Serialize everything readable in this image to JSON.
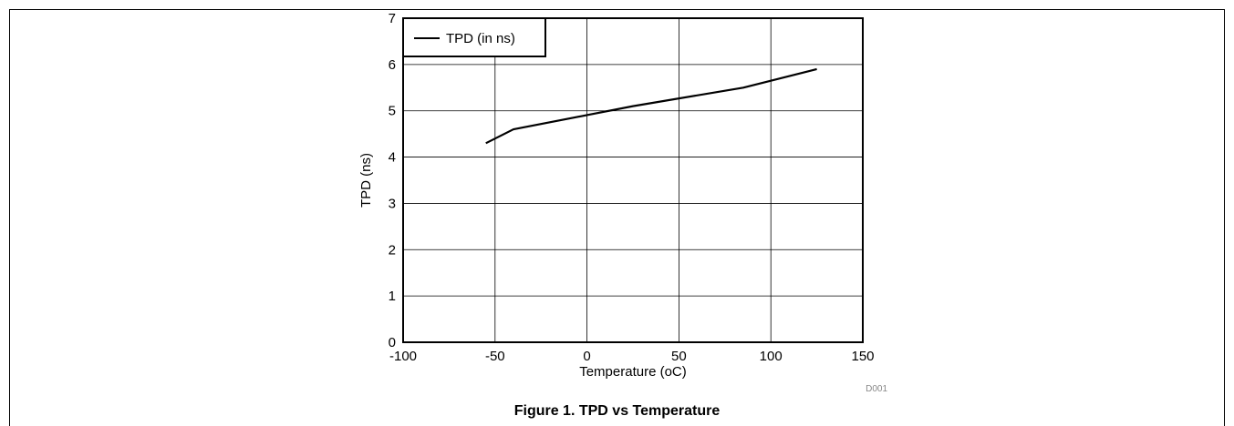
{
  "caption": "Figure 1. TPD vs Temperature",
  "chart_data": {
    "type": "line",
    "title": "",
    "xlabel": "Temperature (oC)",
    "ylabel": "TPD (ns)",
    "xlim": [
      -100,
      150
    ],
    "ylim": [
      0,
      7
    ],
    "xticks": [
      -100,
      -50,
      0,
      50,
      100,
      150
    ],
    "yticks": [
      0,
      1,
      2,
      3,
      4,
      5,
      6,
      7
    ],
    "grid": true,
    "legend": "top-left",
    "series": [
      {
        "name": "TPD (in ns)",
        "color": "#000000",
        "x": [
          -55,
          -40,
          25,
          85,
          125
        ],
        "y": [
          4.3,
          4.6,
          5.1,
          5.5,
          5.9
        ]
      }
    ],
    "watermark": "D001"
  }
}
